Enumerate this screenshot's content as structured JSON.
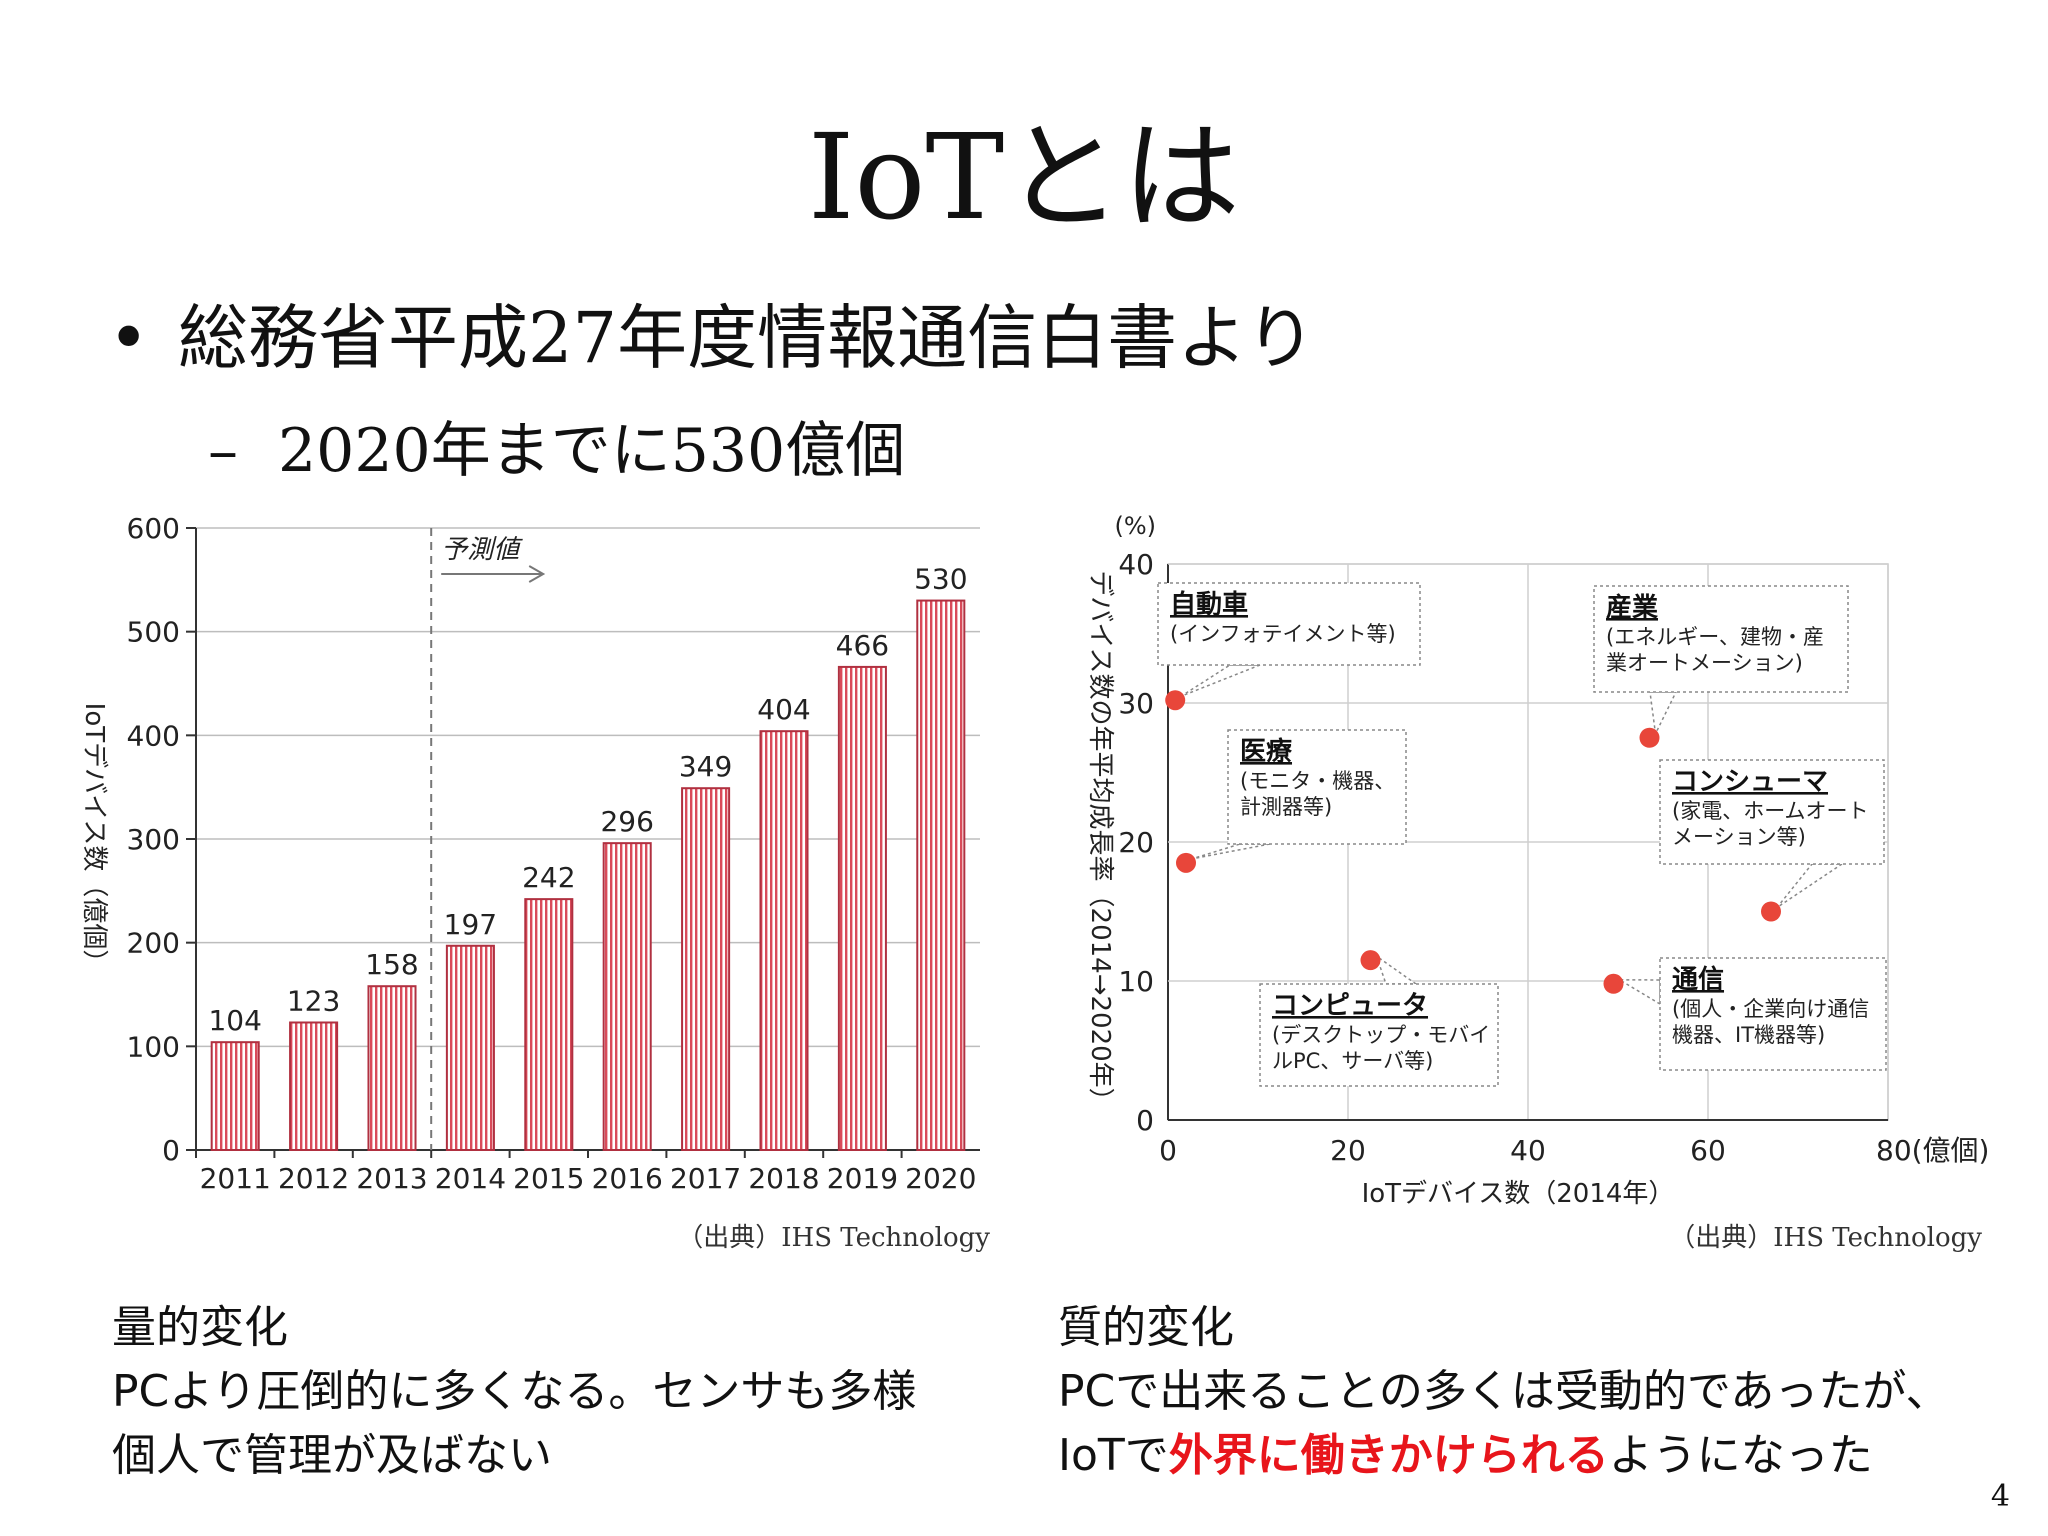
{
  "slide": {
    "title": "IoTとは",
    "bullet": "総務省平成27年度情報通信白書より",
    "sub_bullet": "2020年までに530億個",
    "page_number": "4"
  },
  "captions": {
    "left_heading": "量的変化",
    "left_line1": "PCより圧倒的に多くなる。センサも多様",
    "left_line2": "個人で管理が及ばない",
    "right_heading": "質的変化",
    "right_line1": "PCで出来ることの多くは受動的であったが、",
    "right_line2_pre": "IoTで",
    "right_line2_highlight": "外界に働きかけられる",
    "right_line2_post": "ようになった"
  },
  "colors": {
    "bar_stripe": "#d94b5a",
    "dot": "#e8463a",
    "highlight": "#e8151b"
  },
  "chart_data": [
    {
      "type": "bar",
      "categories": [
        "2011",
        "2012",
        "2013",
        "2014",
        "2015",
        "2016",
        "2017",
        "2018",
        "2019",
        "2020"
      ],
      "values": [
        104,
        123,
        158,
        197,
        242,
        296,
        349,
        404,
        466,
        530
      ],
      "value_labels": [
        "104",
        "123",
        "158",
        "197",
        "242",
        "296",
        "349",
        "404",
        "466",
        "530"
      ],
      "ylabel": "IoTデバイス数（億個）",
      "ylim": [
        0,
        600
      ],
      "yticks": [
        "0",
        "100",
        "200",
        "300",
        "400",
        "500",
        "600"
      ],
      "forecast_label": "予測値",
      "forecast_from": "2014",
      "source": "（出典）IHS Technology"
    },
    {
      "type": "scatter",
      "xlabel": "IoTデバイス数（2014年）",
      "ylabel": "デバイス数の年平均成長率（2014→2020年）",
      "y_unit": "(%)",
      "xlim": [
        0,
        80
      ],
      "ylim": [
        0,
        40
      ],
      "xticks": [
        "0",
        "20",
        "40",
        "60",
        "80(億個)"
      ],
      "yticks": [
        "0",
        "10",
        "20",
        "30",
        "40"
      ],
      "points": [
        {
          "x": 0.8,
          "y": 30.2,
          "title": "自動車",
          "detail": [
            "(インフォテイメント等)"
          ]
        },
        {
          "x": 2.0,
          "y": 18.5,
          "title": "医療",
          "detail": [
            "(モニタ・機器、",
            "計測器等)"
          ]
        },
        {
          "x": 53.5,
          "y": 27.5,
          "title": "産業",
          "detail": [
            "(エネルギー、建物・産",
            "業オートメーション)"
          ]
        },
        {
          "x": 67.0,
          "y": 15.0,
          "title": "コンシューマ",
          "detail": [
            "(家電、ホームオート",
            "メーション等)"
          ]
        },
        {
          "x": 22.5,
          "y": 11.5,
          "title": "コンピュータ",
          "detail": [
            "(デスクトップ・モバイ",
            "ルPC、サーバ等)"
          ]
        },
        {
          "x": 49.5,
          "y": 9.8,
          "title": "通信",
          "detail": [
            "(個人・企業向け通信",
            "機器、IT機器等)"
          ]
        }
      ],
      "source": "（出典）IHS Technology"
    }
  ]
}
